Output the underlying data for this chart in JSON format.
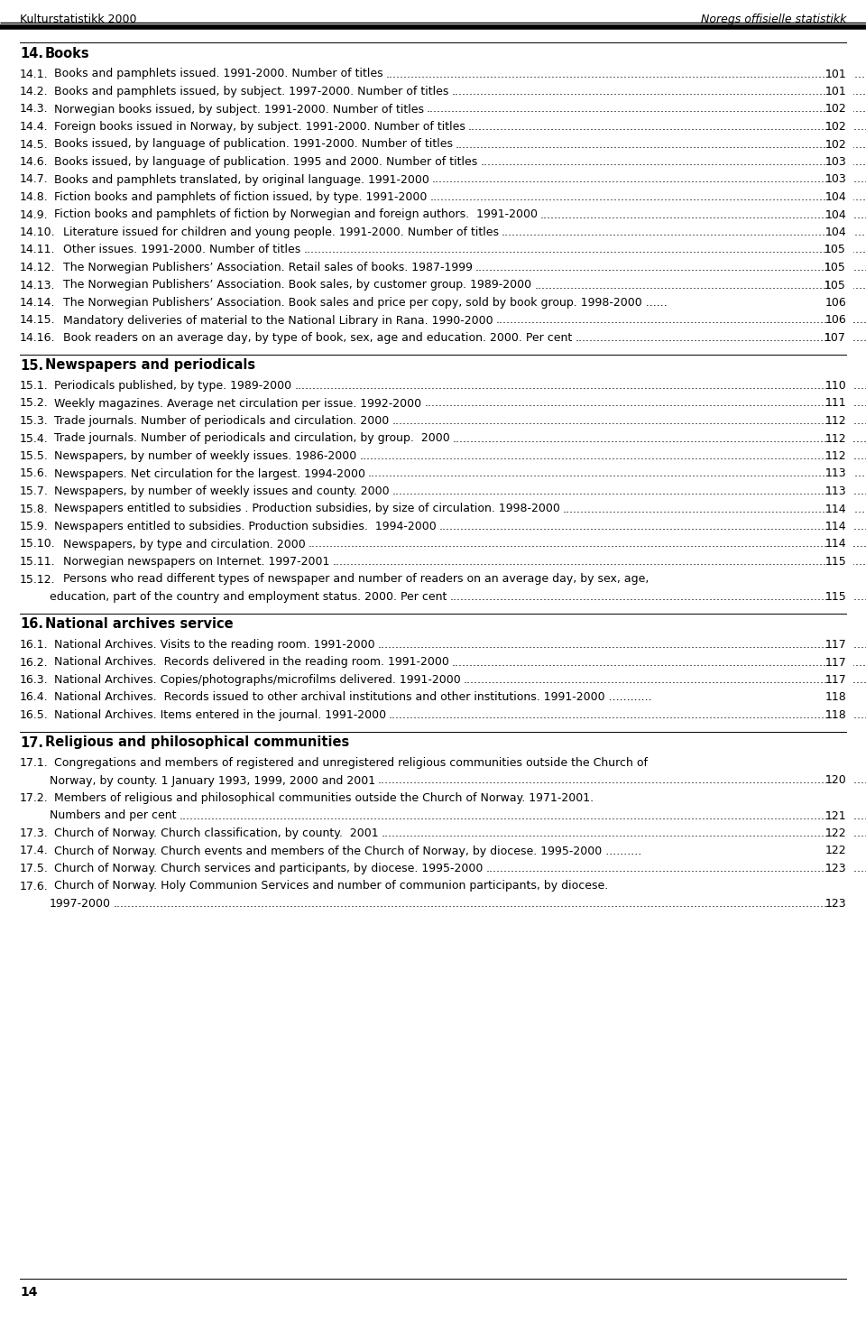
{
  "header_left": "Kulturstatistikk 2000",
  "header_right": "Noregs offisielle statistikk",
  "footer_page": "14",
  "background_color": "#ffffff",
  "sections": [
    {
      "num": "14.",
      "title": "Books",
      "entries": [
        {
          "num": "14.1.",
          "text": "Books and pamphlets issued. 1991-2000. Number of titles",
          "page": "101"
        },
        {
          "num": "14.2.",
          "text": "Books and pamphlets issued, by subject. 1997-2000. Number of titles",
          "page": "101"
        },
        {
          "num": "14.3.",
          "text": "Norwegian books issued, by subject. 1991-2000. Number of titles",
          "page": "102"
        },
        {
          "num": "14.4.",
          "text": "Foreign books issued in Norway, by subject. 1991-2000. Number of titles",
          "page": "102"
        },
        {
          "num": "14.5.",
          "text": "Books issued, by language of publication. 1991-2000. Number of titles",
          "page": "102"
        },
        {
          "num": "14.6.",
          "text": "Books issued, by language of publication. 1995 and 2000. Number of titles",
          "page": "103"
        },
        {
          "num": "14.7.",
          "text": "Books and pamphlets translated, by original language. 1991-2000",
          "page": "103"
        },
        {
          "num": "14.8.",
          "text": "Fiction books and pamphlets of fiction issued, by type. 1991-2000",
          "page": "104"
        },
        {
          "num": "14.9.",
          "text": "Fiction books and pamphlets of fiction by Norwegian and foreign authors.  1991-2000",
          "page": "104"
        },
        {
          "num": "14.10.",
          "text": "Literature issued for children and young people. 1991-2000. Number of titles",
          "page": "104"
        },
        {
          "num": "14.11.",
          "text": "Other issues. 1991-2000. Number of titles",
          "page": "105"
        },
        {
          "num": "14.12.",
          "text": "The Norwegian Publishers’ Association. Retail sales of books. 1987-1999",
          "page": "105"
        },
        {
          "num": "14.13.",
          "text": "The Norwegian Publishers’ Association. Book sales, by customer group. 1989-2000",
          "page": "105"
        },
        {
          "num": "14.14.",
          "text": "The Norwegian Publishers’ Association. Book sales and price per copy, sold by book group. 1998-2000 ......",
          "page": "106",
          "no_dots": true
        },
        {
          "num": "14.15.",
          "text": "Mandatory deliveries of material to the National Library in Rana. 1990-2000",
          "page": "106"
        },
        {
          "num": "14.16.",
          "text": "Book readers on an average day, by type of book, sex, age and education. 2000. Per cent",
          "page": "107"
        }
      ]
    },
    {
      "num": "15.",
      "title": "Newspapers and periodicals",
      "entries": [
        {
          "num": "15.1.",
          "text": "Periodicals published, by type. 1989-2000",
          "page": "110"
        },
        {
          "num": "15.2.",
          "text": "Weekly magazines. Average net circulation per issue. 1992-2000",
          "page": "111"
        },
        {
          "num": "15.3.",
          "text": "Trade journals. Number of periodicals and circulation. 2000",
          "page": "112"
        },
        {
          "num": "15.4.",
          "text": "Trade journals. Number of periodicals and circulation, by group.  2000",
          "page": "112"
        },
        {
          "num": "15.5.",
          "text": "Newspapers, by number of weekly issues. 1986-2000",
          "page": "112"
        },
        {
          "num": "15.6.",
          "text": "Newspapers. Net circulation for the largest. 1994-2000",
          "page": "113"
        },
        {
          "num": "15.7.",
          "text": "Newspapers, by number of weekly issues and county. 2000",
          "page": "113"
        },
        {
          "num": "15.8.",
          "text": "Newspapers entitled to subsidies . Production subsidies, by size of circulation. 1998-2000",
          "page": "114"
        },
        {
          "num": "15.9.",
          "text": "Newspapers entitled to subsidies. Production subsidies.  1994-2000",
          "page": "114"
        },
        {
          "num": "15.10.",
          "text": "Newspapers, by type and circulation. 2000",
          "page": "114"
        },
        {
          "num": "15.11.",
          "text": "Norwegian newspapers on Internet. 1997-2001",
          "page": "115"
        },
        {
          "num": "15.12.",
          "text": "Persons who read different types of newspaper and number of readers on an average day, by sex, age,",
          "page": null,
          "continuation": "education, part of the country and employment status. 2000. Per cent",
          "cont_page": "115"
        }
      ]
    },
    {
      "num": "16.",
      "title": "National archives service",
      "entries": [
        {
          "num": "16.1.",
          "text": "National Archives. Visits to the reading room. 1991-2000",
          "page": "117"
        },
        {
          "num": "16.2.",
          "text": "National Archives.  Records delivered in the reading room. 1991-2000",
          "page": "117"
        },
        {
          "num": "16.3.",
          "text": "National Archives. Copies/photographs/microfilms delivered. 1991-2000",
          "page": "117"
        },
        {
          "num": "16.4.",
          "text": "National Archives.  Records issued to other archival institutions and other institutions. 1991-2000 ............",
          "page": "118",
          "no_dots": true
        },
        {
          "num": "16.5.",
          "text": "National Archives. Items entered in the journal. 1991-2000",
          "page": "118"
        }
      ]
    },
    {
      "num": "17.",
      "title": "Religious and philosophical communities",
      "entries": [
        {
          "num": "17.1.",
          "text": "Congregations and members of registered and unregistered religious communities outside the Church of",
          "page": null,
          "continuation": "Norway, by county. 1 January 1993, 1999, 2000 and 2001",
          "cont_page": "120"
        },
        {
          "num": "17.2.",
          "text": "Members of religious and philosophical communities outside the Church of Norway. 1971-2001.",
          "page": null,
          "continuation": "Numbers and per cent",
          "cont_page": "121"
        },
        {
          "num": "17.3.",
          "text": "Church of Norway. Church classification, by county.  2001",
          "page": "122"
        },
        {
          "num": "17.4.",
          "text": "Church of Norway. Church events and members of the Church of Norway, by diocese. 1995-2000 ..........",
          "page": "122",
          "no_dots": true
        },
        {
          "num": "17.5.",
          "text": "Church of Norway. Church services and participants, by diocese. 1995-2000",
          "page": "123"
        },
        {
          "num": "17.6.",
          "text": "Church of Norway. Holy Communion Services and number of communion participants, by diocese.",
          "page": null,
          "continuation": "1997-2000",
          "cont_page": "123"
        }
      ]
    }
  ]
}
